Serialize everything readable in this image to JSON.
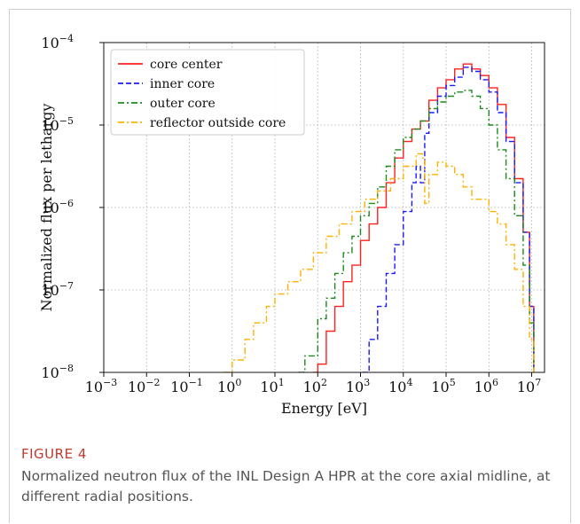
{
  "figure": {
    "label": "FIGURE 4",
    "caption": "Normalized neutron flux of the INL Design A HPR at the core axial midline, at different radial positions."
  },
  "chart_data": {
    "type": "line",
    "xlabel": "Energy [eV]",
    "ylabel": "Normalized flux per lethargy",
    "xscale": "log",
    "yscale": "log",
    "xlim_exp": [
      -3,
      7.3
    ],
    "ylim_exp": [
      -8,
      -4
    ],
    "xticks": [
      {
        "base": "10",
        "exp": "−3",
        "e": -3
      },
      {
        "base": "10",
        "exp": "−2",
        "e": -2
      },
      {
        "base": "10",
        "exp": "−1",
        "e": -1
      },
      {
        "base": "10",
        "exp": "0",
        "e": 0
      },
      {
        "base": "10",
        "exp": "1",
        "e": 1
      },
      {
        "base": "10",
        "exp": "2",
        "e": 2
      },
      {
        "base": "10",
        "exp": "3",
        "e": 3
      },
      {
        "base": "10",
        "exp": "4",
        "e": 4
      },
      {
        "base": "10",
        "exp": "5",
        "e": 5
      },
      {
        "base": "10",
        "exp": "6",
        "e": 6
      },
      {
        "base": "10",
        "exp": "7",
        "e": 7
      }
    ],
    "yticks": [
      {
        "base": "10",
        "exp": "−8",
        "e": -8
      },
      {
        "base": "10",
        "exp": "−7",
        "e": -7
      },
      {
        "base": "10",
        "exp": "−6",
        "e": -6
      },
      {
        "base": "10",
        "exp": "−5",
        "e": -5
      },
      {
        "base": "10",
        "exp": "−4",
        "e": -4
      }
    ],
    "grid": true,
    "legend_position": "top-left",
    "series": [
      {
        "name": "core center",
        "color": "#ff2020",
        "dash": "",
        "points": [
          [
            1.9,
            -8.0
          ],
          [
            2.0,
            -7.9
          ],
          [
            2.2,
            -7.5
          ],
          [
            2.4,
            -7.2
          ],
          [
            2.6,
            -6.9
          ],
          [
            2.8,
            -6.7
          ],
          [
            3.0,
            -6.4
          ],
          [
            3.2,
            -6.2
          ],
          [
            3.4,
            -6.0
          ],
          [
            3.6,
            -5.7
          ],
          [
            3.8,
            -5.4
          ],
          [
            4.0,
            -5.2
          ],
          [
            4.2,
            -5.05
          ],
          [
            4.4,
            -4.95
          ],
          [
            4.6,
            -4.7
          ],
          [
            4.8,
            -4.55
          ],
          [
            5.0,
            -4.45
          ],
          [
            5.2,
            -4.32
          ],
          [
            5.4,
            -4.26
          ],
          [
            5.6,
            -4.32
          ],
          [
            5.8,
            -4.4
          ],
          [
            6.0,
            -4.55
          ],
          [
            6.2,
            -4.75
          ],
          [
            6.4,
            -5.15
          ],
          [
            6.6,
            -5.65
          ],
          [
            6.8,
            -6.3
          ],
          [
            6.95,
            -7.2
          ],
          [
            7.05,
            -8.0
          ]
        ]
      },
      {
        "name": "inner core",
        "color": "#1a1aff",
        "dash": "6,3",
        "points": [
          [
            3.05,
            -8.0
          ],
          [
            3.2,
            -7.6
          ],
          [
            3.4,
            -7.2
          ],
          [
            3.6,
            -6.8
          ],
          [
            3.8,
            -6.45
          ],
          [
            4.0,
            -6.05
          ],
          [
            4.2,
            -5.7
          ],
          [
            4.3,
            -5.5
          ],
          [
            4.4,
            -5.7
          ],
          [
            4.5,
            -5.1
          ],
          [
            4.6,
            -4.85
          ],
          [
            4.8,
            -4.65
          ],
          [
            5.0,
            -4.52
          ],
          [
            5.2,
            -4.42
          ],
          [
            5.4,
            -4.3
          ],
          [
            5.6,
            -4.35
          ],
          [
            5.8,
            -4.45
          ],
          [
            6.0,
            -4.6
          ],
          [
            6.2,
            -4.85
          ],
          [
            6.4,
            -5.2
          ],
          [
            6.6,
            -5.7
          ],
          [
            6.8,
            -6.3
          ],
          [
            6.95,
            -7.2
          ],
          [
            7.05,
            -8.0
          ]
        ]
      },
      {
        "name": "outer core",
        "color": "#1a8a1a",
        "dash": "7,3,2,3",
        "points": [
          [
            1.55,
            -8.0
          ],
          [
            1.7,
            -7.8
          ],
          [
            2.0,
            -7.35
          ],
          [
            2.2,
            -7.1
          ],
          [
            2.4,
            -6.8
          ],
          [
            2.6,
            -6.55
          ],
          [
            2.8,
            -6.35
          ],
          [
            3.0,
            -6.1
          ],
          [
            3.2,
            -5.95
          ],
          [
            3.4,
            -5.75
          ],
          [
            3.6,
            -5.5
          ],
          [
            3.8,
            -5.3
          ],
          [
            4.0,
            -5.15
          ],
          [
            4.2,
            -5.05
          ],
          [
            4.4,
            -4.95
          ],
          [
            4.6,
            -4.8
          ],
          [
            4.8,
            -4.72
          ],
          [
            5.0,
            -4.65
          ],
          [
            5.2,
            -4.6
          ],
          [
            5.4,
            -4.58
          ],
          [
            5.6,
            -4.65
          ],
          [
            5.8,
            -4.8
          ],
          [
            6.0,
            -5.0
          ],
          [
            6.2,
            -5.3
          ],
          [
            6.4,
            -5.65
          ],
          [
            6.6,
            -6.1
          ],
          [
            6.8,
            -6.7
          ],
          [
            6.95,
            -7.4
          ],
          [
            7.05,
            -8.0
          ]
        ]
      },
      {
        "name": "reflector outside core",
        "color": "#ffb000",
        "dash": "7,3,2,3",
        "points": [
          [
            -0.2,
            -8.0
          ],
          [
            0.0,
            -7.85
          ],
          [
            0.3,
            -7.6
          ],
          [
            0.5,
            -7.4
          ],
          [
            0.8,
            -7.2
          ],
          [
            1.0,
            -7.05
          ],
          [
            1.3,
            -6.9
          ],
          [
            1.6,
            -6.75
          ],
          [
            1.9,
            -6.55
          ],
          [
            2.2,
            -6.35
          ],
          [
            2.5,
            -6.2
          ],
          [
            2.8,
            -6.05
          ],
          [
            3.1,
            -5.9
          ],
          [
            3.4,
            -5.8
          ],
          [
            3.7,
            -5.65
          ],
          [
            4.0,
            -5.5
          ],
          [
            4.3,
            -5.35
          ],
          [
            4.45,
            -5.4
          ],
          [
            4.5,
            -5.95
          ],
          [
            4.6,
            -5.6
          ],
          [
            4.8,
            -5.45
          ],
          [
            5.0,
            -5.5
          ],
          [
            5.2,
            -5.6
          ],
          [
            5.4,
            -5.75
          ],
          [
            5.6,
            -5.9
          ],
          [
            5.8,
            -5.9
          ],
          [
            6.0,
            -6.05
          ],
          [
            6.2,
            -6.2
          ],
          [
            6.4,
            -6.45
          ],
          [
            6.6,
            -6.75
          ],
          [
            6.8,
            -7.2
          ],
          [
            6.95,
            -7.6
          ],
          [
            7.05,
            -8.0
          ]
        ]
      }
    ]
  }
}
